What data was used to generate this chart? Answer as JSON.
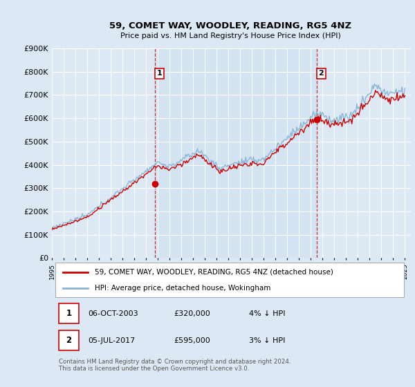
{
  "title": "59, COMET WAY, WOODLEY, READING, RG5 4NZ",
  "subtitle": "Price paid vs. HM Land Registry's House Price Index (HPI)",
  "ylim": [
    0,
    900000
  ],
  "xlim_start": 1995.0,
  "xlim_end": 2025.5,
  "background_color": "#dce9f5",
  "shade_color": "#c5d9ee",
  "line1_color": "#cc0000",
  "line2_color": "#85b4d4",
  "marker_color": "#cc0000",
  "sale1_x": 2003.75,
  "sale1_y": 320000,
  "sale2_x": 2017.5,
  "sale2_y": 595000,
  "vline_color": "#cc0000",
  "legend_label1": "59, COMET WAY, WOODLEY, READING, RG5 4NZ (detached house)",
  "legend_label2": "HPI: Average price, detached house, Wokingham",
  "table_row1": [
    "1",
    "06-OCT-2003",
    "£320,000",
    "4% ↓ HPI"
  ],
  "table_row2": [
    "2",
    "05-JUL-2017",
    "£595,000",
    "3% ↓ HPI"
  ],
  "footnote": "Contains HM Land Registry data © Crown copyright and database right 2024.\nThis data is licensed under the Open Government Licence v3.0.",
  "grid_color": "#ffffff",
  "tick_years": [
    1995,
    1996,
    1997,
    1998,
    1999,
    2000,
    2001,
    2002,
    2003,
    2004,
    2005,
    2006,
    2007,
    2008,
    2009,
    2010,
    2011,
    2012,
    2013,
    2014,
    2015,
    2016,
    2017,
    2018,
    2019,
    2020,
    2021,
    2022,
    2023,
    2024,
    2025
  ]
}
